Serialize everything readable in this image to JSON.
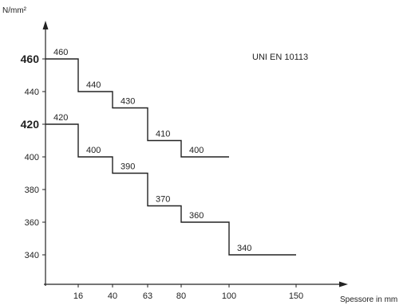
{
  "chart_data": {
    "type": "line",
    "title": "",
    "annotation": "UNI EN 10113",
    "ylabel": "N/mm²",
    "xlabel": "Spessore in mm",
    "ylim": [
      330,
      470
    ],
    "x_ticks": [
      16,
      40,
      63,
      80,
      100,
      150
    ],
    "y_ticks": [
      {
        "value": 460,
        "label": "460",
        "bold": true
      },
      {
        "value": 440,
        "label": "440",
        "bold": false
      },
      {
        "value": 420,
        "label": "420",
        "bold": true
      },
      {
        "value": 400,
        "label": "400",
        "bold": false
      },
      {
        "value": 380,
        "label": "380",
        "bold": false
      },
      {
        "value": 360,
        "label": "360",
        "bold": false
      },
      {
        "value": 340,
        "label": "340",
        "bold": false
      }
    ],
    "series": [
      {
        "steps": [
          {
            "from": 0,
            "to": 16,
            "value": 460,
            "label": "460"
          },
          {
            "from": 16,
            "to": 40,
            "value": 440,
            "label": "440"
          },
          {
            "from": 40,
            "to": 63,
            "value": 430,
            "label": "430"
          },
          {
            "from": 63,
            "to": 80,
            "value": 410,
            "label": "410"
          },
          {
            "from": 80,
            "to": 100,
            "value": 400,
            "label": "400"
          }
        ]
      },
      {
        "steps": [
          {
            "from": 0,
            "to": 16,
            "value": 420,
            "label": "420"
          },
          {
            "from": 16,
            "to": 40,
            "value": 400,
            "label": "400"
          },
          {
            "from": 40,
            "to": 63,
            "value": 390,
            "label": "390"
          },
          {
            "from": 63,
            "to": 80,
            "value": 370,
            "label": "370"
          },
          {
            "from": 80,
            "to": 100,
            "value": 360,
            "label": "360"
          },
          {
            "from": 100,
            "to": 150,
            "value": 340,
            "label": "340"
          }
        ]
      }
    ],
    "grid": false,
    "line_color": "#222222"
  }
}
